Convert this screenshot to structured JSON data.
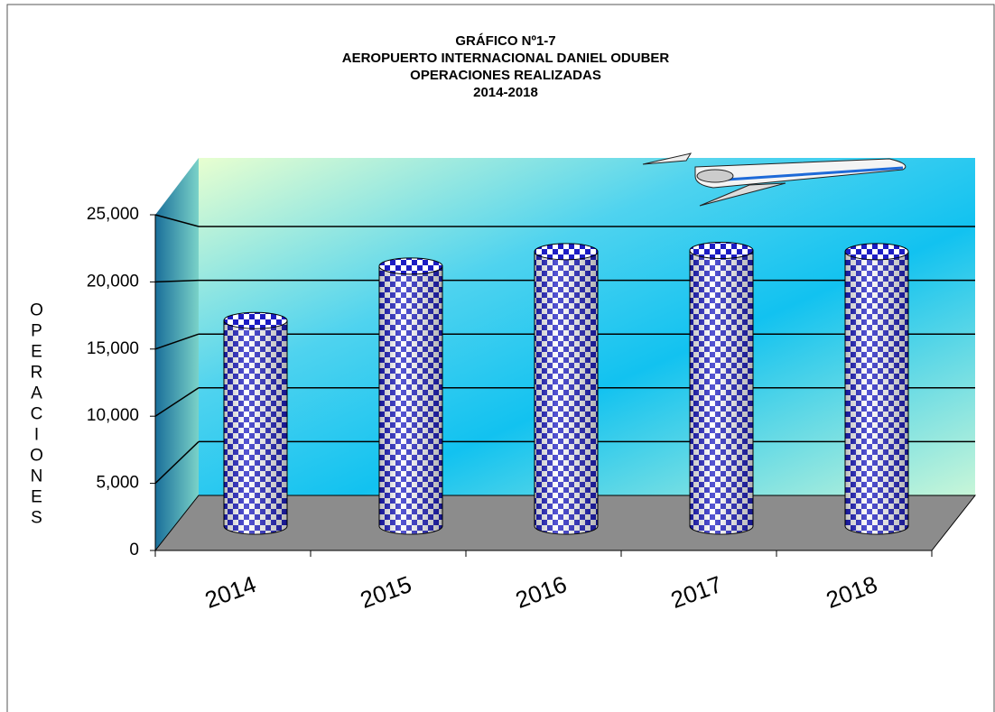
{
  "chart_data": {
    "type": "bar",
    "title": [
      "GRÁFICO Nº1-7",
      "AEROPUERTO INTERNACIONAL DANIEL ODUBER",
      "OPERACIONES REALIZADAS",
      "2014-2018"
    ],
    "y_label": "OPERACIONES",
    "categories": [
      "2014",
      "2015",
      "2016",
      "2017",
      "2018"
    ],
    "values": [
      17000,
      21500,
      22700,
      22800,
      22700
    ],
    "color": "#1c1cc4",
    "ylim": [
      0,
      25000
    ],
    "yticks": [
      {
        "value": 0,
        "label": "0"
      },
      {
        "value": 5000,
        "label": "5,000"
      },
      {
        "value": 10000,
        "label": "10,000"
      },
      {
        "value": 15000,
        "label": "15,000"
      },
      {
        "value": 20000,
        "label": "20,000"
      },
      {
        "value": 25000,
        "label": "25,000"
      }
    ],
    "grid": true
  }
}
